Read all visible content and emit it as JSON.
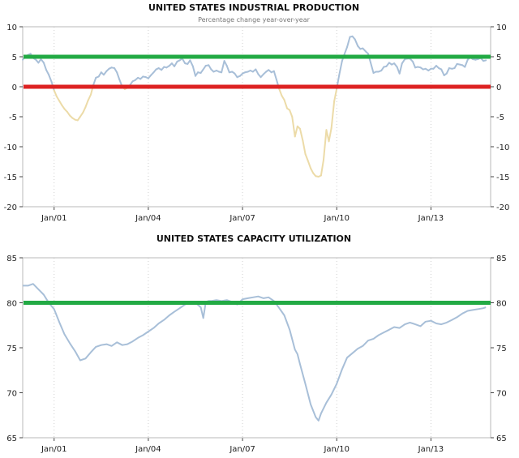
{
  "chart_data": [
    {
      "type": "line",
      "title": "UNITED STATES INDUSTRIAL PRODUCTION",
      "subtitle": "Percentage change year-over-year",
      "ylim": [
        -20,
        10
      ],
      "yticks": [
        10,
        5,
        0,
        -5,
        -10,
        -15,
        -20
      ],
      "xlim": [
        2000.0,
        2014.9
      ],
      "xticks": [
        {
          "label": "Jan/01",
          "x": 2001.0
        },
        {
          "label": "Jan/04",
          "x": 2004.0
        },
        {
          "label": "Jan/07",
          "x": 2007.0
        },
        {
          "label": "Jan/10",
          "x": 2010.0
        },
        {
          "label": "Jan/13",
          "x": 2013.0
        }
      ],
      "grid": "vertical dotted",
      "reference_lines": [
        {
          "y": 5,
          "color": "#22aa44"
        },
        {
          "y": 0,
          "color": "#dd2222"
        }
      ],
      "colors": {
        "positive": "#a8bfd8",
        "negative": "#ecdba8"
      },
      "series": [
        {
          "x": [
            2000.0,
            2000.08,
            2000.17,
            2000.25,
            2000.33,
            2000.42,
            2000.5,
            2000.58,
            2000.67,
            2000.75,
            2000.83,
            2000.92,
            2001.0,
            2001.08,
            2001.17,
            2001.25,
            2001.33,
            2001.42,
            2001.5,
            2001.58,
            2001.67,
            2001.75,
            2001.83,
            2001.92,
            2002.0,
            2002.08,
            2002.17,
            2002.25,
            2002.33,
            2002.42,
            2002.5,
            2002.58,
            2002.67,
            2002.75,
            2002.83,
            2002.92,
            2003.0,
            2003.08,
            2003.17,
            2003.25,
            2003.33,
            2003.42,
            2003.5,
            2003.58,
            2003.67,
            2003.75,
            2003.83,
            2003.92,
            2004.0,
            2004.08,
            2004.17,
            2004.25,
            2004.33,
            2004.42,
            2004.5,
            2004.58,
            2004.67,
            2004.75,
            2004.83,
            2004.92,
            2005.0,
            2005.08,
            2005.17,
            2005.25,
            2005.33,
            2005.42,
            2005.5,
            2005.58,
            2005.67,
            2005.75,
            2005.83,
            2005.92,
            2006.0,
            2006.08,
            2006.17,
            2006.25,
            2006.33,
            2006.42,
            2006.5,
            2006.58,
            2006.67,
            2006.75,
            2006.83,
            2006.92,
            2007.0,
            2007.08,
            2007.17,
            2007.25,
            2007.33,
            2007.42,
            2007.5,
            2007.58,
            2007.67,
            2007.75,
            2007.83,
            2007.92,
            2008.0,
            2008.08,
            2008.17,
            2008.25,
            2008.33,
            2008.42,
            2008.5,
            2008.58,
            2008.67,
            2008.75,
            2008.83,
            2008.92,
            2009.0,
            2009.08,
            2009.17,
            2009.25,
            2009.33,
            2009.42,
            2009.5,
            2009.58,
            2009.67,
            2009.75,
            2009.83,
            2009.92,
            2010.0,
            2010.08,
            2010.17,
            2010.25,
            2010.33,
            2010.42,
            2010.5,
            2010.58,
            2010.67,
            2010.75,
            2010.83,
            2010.92,
            2011.0,
            2011.08,
            2011.17,
            2011.25,
            2011.33,
            2011.42,
            2011.5,
            2011.58,
            2011.67,
            2011.75,
            2011.83,
            2011.92,
            2012.0,
            2012.08,
            2012.17,
            2012.25,
            2012.33,
            2012.42,
            2012.5,
            2012.58,
            2012.67,
            2012.75,
            2012.83,
            2012.92,
            2013.0,
            2013.08,
            2013.17,
            2013.25,
            2013.33,
            2013.42,
            2013.5,
            2013.58,
            2013.67,
            2013.75,
            2013.83,
            2013.92,
            2014.0,
            2014.08,
            2014.17,
            2014.25,
            2014.33,
            2014.42,
            2014.5,
            2014.58,
            2014.67,
            2014.75
          ],
          "y": [
            4.5,
            5.0,
            5.3,
            5.5,
            4.8,
            4.5,
            4.0,
            4.6,
            4.0,
            2.8,
            2.0,
            0.8,
            -0.6,
            -1.6,
            -2.4,
            -3.1,
            -3.7,
            -4.2,
            -4.8,
            -5.2,
            -5.5,
            -5.6,
            -5.0,
            -4.3,
            -3.4,
            -2.3,
            -1.3,
            0.3,
            1.5,
            1.7,
            2.4,
            2.0,
            2.6,
            3.0,
            3.2,
            3.1,
            2.4,
            1.2,
            0.0,
            -0.4,
            -0.2,
            0.3,
            0.9,
            1.1,
            1.5,
            1.3,
            1.7,
            1.6,
            1.4,
            1.9,
            2.4,
            2.9,
            3.1,
            2.8,
            3.3,
            3.2,
            3.5,
            3.9,
            3.4,
            4.2,
            4.4,
            4.7,
            3.9,
            3.8,
            4.4,
            3.4,
            1.8,
            2.4,
            2.3,
            2.9,
            3.5,
            3.6,
            2.9,
            2.5,
            2.7,
            2.5,
            2.4,
            4.3,
            3.5,
            2.4,
            2.5,
            2.2,
            1.6,
            1.8,
            2.2,
            2.4,
            2.5,
            2.7,
            2.5,
            2.9,
            2.1,
            1.6,
            2.1,
            2.5,
            2.8,
            2.4,
            2.6,
            1.2,
            -0.4,
            -1.5,
            -2.2,
            -3.6,
            -3.9,
            -5.0,
            -8.3,
            -6.6,
            -7.0,
            -9.0,
            -11.2,
            -12.3,
            -13.6,
            -14.4,
            -14.9,
            -15.0,
            -14.8,
            -12.2,
            -7.2,
            -9.1,
            -6.9,
            -2.4,
            -0.3,
            2.0,
            4.3,
            5.5,
            6.6,
            8.3,
            8.4,
            7.9,
            6.8,
            6.3,
            6.4,
            5.9,
            5.5,
            4.0,
            2.3,
            2.5,
            2.5,
            2.7,
            3.3,
            3.4,
            4.0,
            3.7,
            3.9,
            3.3,
            2.2,
            3.9,
            4.6,
            4.7,
            4.7,
            4.2,
            3.2,
            3.3,
            3.2,
            2.9,
            3.0,
            2.7,
            3.0,
            3.0,
            3.5,
            3.1,
            2.9,
            1.9,
            2.2,
            3.1,
            3.0,
            3.1,
            3.8,
            3.7,
            3.6,
            3.3,
            4.5,
            4.9,
            4.6,
            4.5,
            4.6,
            4.8,
            4.3,
            4.4
          ]
        }
      ]
    },
    {
      "type": "line",
      "title": "UNITED STATES CAPACITY UTILIZATION",
      "ylim": [
        65,
        85
      ],
      "yticks": [
        85,
        80,
        75,
        70,
        65
      ],
      "xlim": [
        2000.0,
        2014.9
      ],
      "xticks": [
        {
          "label": "Jan/01",
          "x": 2001.0
        },
        {
          "label": "Jan/04",
          "x": 2004.0
        },
        {
          "label": "Jan/07",
          "x": 2007.0
        },
        {
          "label": "Jan/10",
          "x": 2010.0
        },
        {
          "label": "Jan/13",
          "x": 2013.0
        }
      ],
      "grid": "vertical dotted",
      "reference_lines": [
        {
          "y": 80,
          "color": "#22aa44"
        }
      ],
      "colors": {
        "line": "#a8bfd8"
      },
      "series": [
        {
          "x": [
            2000.0,
            2000.17,
            2000.33,
            2000.5,
            2000.67,
            2000.83,
            2001.0,
            2001.17,
            2001.33,
            2001.5,
            2001.67,
            2001.83,
            2002.0,
            2002.17,
            2002.33,
            2002.5,
            2002.67,
            2002.83,
            2003.0,
            2003.17,
            2003.33,
            2003.5,
            2003.67,
            2003.83,
            2004.0,
            2004.17,
            2004.33,
            2004.5,
            2004.67,
            2004.83,
            2005.0,
            2005.17,
            2005.33,
            2005.5,
            2005.67,
            2005.75,
            2005.83,
            2005.92,
            2006.0,
            2006.17,
            2006.33,
            2006.5,
            2006.67,
            2006.83,
            2007.0,
            2007.17,
            2007.33,
            2007.5,
            2007.67,
            2007.83,
            2008.0,
            2008.17,
            2008.33,
            2008.5,
            2008.67,
            2008.75,
            2008.83,
            2009.0,
            2009.17,
            2009.33,
            2009.42,
            2009.5,
            2009.67,
            2009.83,
            2010.0,
            2010.17,
            2010.33,
            2010.5,
            2010.67,
            2010.83,
            2011.0,
            2011.17,
            2011.33,
            2011.5,
            2011.67,
            2011.83,
            2012.0,
            2012.17,
            2012.33,
            2012.5,
            2012.67,
            2012.83,
            2013.0,
            2013.17,
            2013.33,
            2013.5,
            2013.67,
            2013.83,
            2014.0,
            2014.17,
            2014.33,
            2014.5,
            2014.67,
            2014.75
          ],
          "y": [
            81.9,
            81.9,
            82.1,
            81.5,
            80.9,
            80.0,
            79.3,
            77.8,
            76.5,
            75.5,
            74.6,
            73.6,
            73.8,
            74.5,
            75.1,
            75.3,
            75.4,
            75.2,
            75.6,
            75.3,
            75.4,
            75.7,
            76.1,
            76.4,
            76.8,
            77.2,
            77.7,
            78.1,
            78.6,
            79.0,
            79.4,
            79.8,
            80.1,
            80.0,
            79.5,
            78.3,
            80.1,
            80.2,
            80.2,
            80.3,
            80.2,
            80.3,
            80.1,
            79.8,
            80.4,
            80.5,
            80.6,
            80.7,
            80.5,
            80.6,
            80.2,
            79.4,
            78.6,
            77.0,
            74.8,
            74.3,
            73.2,
            71.0,
            68.7,
            67.3,
            66.9,
            67.7,
            68.9,
            69.8,
            71.0,
            72.6,
            73.9,
            74.4,
            74.9,
            75.2,
            75.8,
            76.0,
            76.4,
            76.7,
            77.0,
            77.3,
            77.2,
            77.6,
            77.8,
            77.6,
            77.4,
            77.9,
            78.0,
            77.7,
            77.6,
            77.8,
            78.1,
            78.4,
            78.8,
            79.1,
            79.2,
            79.3,
            79.4,
            79.5
          ]
        }
      ]
    }
  ]
}
